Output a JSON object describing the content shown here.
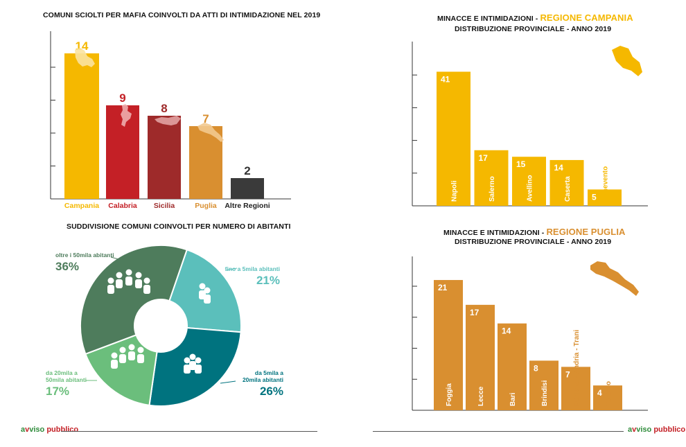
{
  "charts": {
    "mafia": {
      "title": "COMUNI SCIOLTI PER MAFIA COINVOLTI DA ATTI DI INTIMIDAZIONE NEL 2019"
    },
    "inhabitants": {
      "title": "SUDDIVISIONE COMUNI COINVOLTI PER NUMERO DI ABITANTI"
    },
    "campania": {
      "title_prefix": "MINACCE E INTIMIDAZIONI - ",
      "title_highlight": "REGIONE CAMPANIA",
      "subtitle": "DISTRIBUZIONE PROVINCIALE - ANNO 2019"
    },
    "puglia": {
      "title_prefix": "MINACCE E INTIMIDAZIONI - ",
      "title_highlight": "REGIONE PUGLIA",
      "subtitle": "DISTRIBUZIONE PROVINCIALE - ANNO 2019"
    }
  },
  "brand": {
    "left": "avviso pubblico",
    "right": "avviso pubblico"
  },
  "chart_data": [
    {
      "type": "bar",
      "title": "COMUNI SCIOLTI PER MAFIA COINVOLTI DA ATTI DI INTIMIDAZIONE NEL 2019",
      "categories": [
        "Campania",
        "Calabria",
        "Sicilia",
        "Puglia",
        "Altre Regioni"
      ],
      "values": [
        14,
        9,
        8,
        7,
        2
      ],
      "colors": [
        "#F5B800",
        "#C42026",
        "#9E2A2A",
        "#D98F30",
        "#3A3A3A"
      ],
      "ylim": [
        0,
        15
      ],
      "grid": false
    },
    {
      "type": "pie",
      "title": "SUDDIVISIONE COMUNI COINVOLTI PER NUMERO DI ABITANTI",
      "slices": [
        {
          "label": "fino a 5mila abitanti",
          "value": 21,
          "display": "21%",
          "color": "#5BBFBB"
        },
        {
          "label": "da 5mila a 20mila abitanti",
          "value": 26,
          "display": "26%",
          "color": "#00737F"
        },
        {
          "label": "da 20mila a 50mila abitanti",
          "value": 17,
          "display": "17%",
          "color": "#6BBE7C"
        },
        {
          "label": "oltre i 50mila abitanti",
          "value": 36,
          "display": "36%",
          "color": "#4E7C5C"
        }
      ]
    },
    {
      "type": "bar",
      "title": "MINACCE E INTIMIDAZIONI - REGIONE CAMPANIA",
      "subtitle": "DISTRIBUZIONE PROVINCIALE - ANNO 2019",
      "categories": [
        "Napoli",
        "Salerno",
        "Avellino",
        "Caserta",
        "Benevento"
      ],
      "values": [
        41,
        17,
        15,
        14,
        5
      ],
      "color": "#F5B800",
      "ylim": [
        0,
        50
      ],
      "grid": false
    },
    {
      "type": "bar",
      "title": "MINACCE E INTIMIDAZIONI - REGIONE PUGLIA",
      "subtitle": "DISTRIBUZIONE PROVINCIALE - ANNO 2019",
      "categories": [
        "Foggia",
        "Lecce",
        "Bari",
        "Brindisi",
        "Barletta - Andria - Trani",
        "Taranto"
      ],
      "values": [
        21,
        17,
        14,
        8,
        7,
        4
      ],
      "color": "#D98F30",
      "ylim": [
        0,
        25
      ],
      "grid": false
    }
  ]
}
